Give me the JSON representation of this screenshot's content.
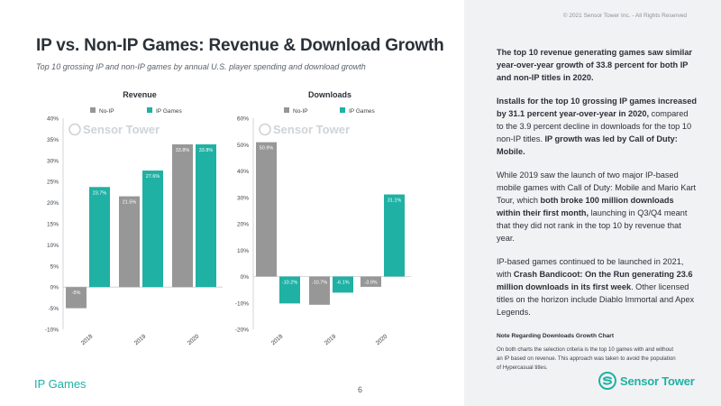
{
  "copyright": "© 2021 Sensor Tower Inc. - All Rights Reserved",
  "title": "IP vs. Non-IP Games: Revenue & Download Growth",
  "subtitle": "Top 10 grossing IP and non-IP games by annual U.S. player spending and download growth",
  "section_label": "IP Games",
  "page_number": "6",
  "watermark": "Sensor Tower",
  "logo_text": "Sensor Tower",
  "colors": {
    "non_ip": "#979797",
    "ip": "#1fb1a4",
    "accent": "#1fb1a4"
  },
  "summary": {
    "p1": "The top 10 revenue generating games saw similar year-over-year growth of 33.8 percent for both IP and non-IP titles in 2020.",
    "p2": "Installs for the top 10 grossing IP games increased by 31.1 percent year-over-year in 2020,",
    "p2b": " compared to the 3.9 percent decline in downloads for the top 10 non-IP titles.",
    "p2c": "IP growth was led by Call of Duty: Mobile.",
    "p3a": "While 2019 saw the launch of two major IP-based mobile games with Call of Duty: Mobile and Mario Kart Tour, which",
    "p3b": "both broke 100 million downloads within their first month,",
    "p3c": "launching in Q3/Q4 meant that they did not rank in the top 10 by revenue that year.",
    "p4a": "IP-based games continued to be launched in 2021, with",
    "p4b": "Crash Bandicoot: On the Run generating 23.6 million downloads in its first week",
    "p4c": ". Other licensed titles on the horizon include Diablo Immortal and Apex Legends.",
    "note_heading": "Note Regarding Downloads Growth Chart",
    "note_text": "On both charts the selection criteria is the top 10 games with and without an IP based on revenue. This approach was taken to avoid the population of Hypercasual titles."
  },
  "chart_data": [
    {
      "type": "bar",
      "title": "Revenue",
      "categories": [
        "2018",
        "2019",
        "2020"
      ],
      "series": [
        {
          "name": "No-IP",
          "values": [
            -5,
            21.5,
            33.8
          ],
          "labels": [
            "-5%",
            "21.5%",
            "33.8%"
          ]
        },
        {
          "name": "IP Games",
          "values": [
            23.7,
            27.6,
            33.8
          ],
          "labels": [
            "23.7%",
            "27.6%",
            "33.8%"
          ]
        }
      ],
      "ylim": [
        -10,
        40
      ],
      "yticks": [
        40,
        35,
        30,
        25,
        20,
        15,
        10,
        5,
        0,
        -5,
        -10
      ],
      "ytick_labels": [
        "40%",
        "35%",
        "30%",
        "25%",
        "20%",
        "15%",
        "10%",
        "5%",
        "0%",
        "-5%",
        "-10%"
      ],
      "legend": "top"
    },
    {
      "type": "bar",
      "title": "Downloads",
      "categories": [
        "2018",
        "2019",
        "2020"
      ],
      "series": [
        {
          "name": "No-IP",
          "values": [
            50.9,
            -10.7,
            -3.9
          ],
          "labels": [
            "50.9%",
            "-10.7%",
            "-3.9%"
          ]
        },
        {
          "name": "IP Games",
          "values": [
            -10.2,
            -6.1,
            31.1
          ],
          "labels": [
            "-10.2%",
            "-6.1%",
            "31.1%"
          ]
        }
      ],
      "ylim": [
        -20,
        60
      ],
      "yticks": [
        60,
        50,
        40,
        30,
        20,
        10,
        0,
        -10,
        -20
      ],
      "ytick_labels": [
        "60%",
        "50%",
        "40%",
        "30%",
        "20%",
        "10%",
        "0%",
        "-10%",
        "-20%"
      ],
      "legend": "top"
    }
  ]
}
